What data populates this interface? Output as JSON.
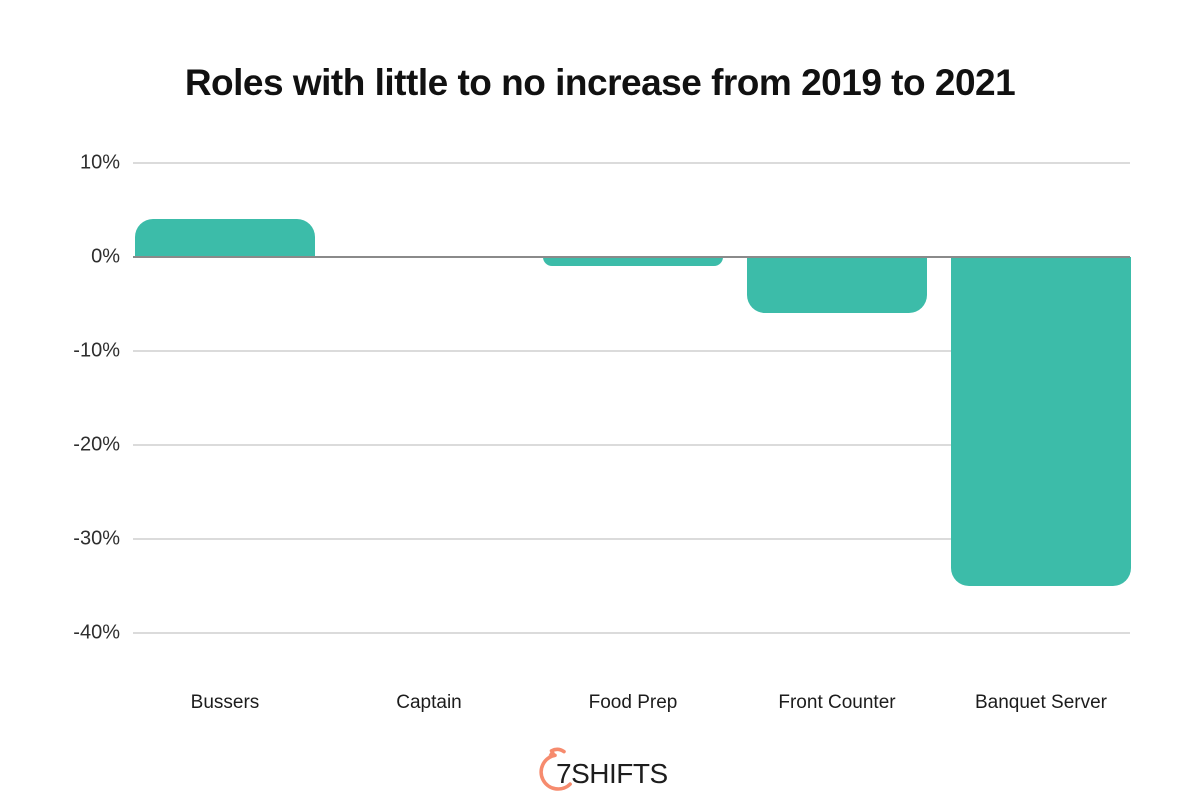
{
  "title": "Roles with little to no increase from 2019 to 2021",
  "chart_data": {
    "type": "bar",
    "categories": [
      "Bussers",
      "Captain",
      "Food Prep",
      "Front Counter",
      "Banquet Server"
    ],
    "values": [
      4,
      0,
      -1,
      -6,
      -35
    ],
    "unit": "%",
    "title": "Roles with little to no increase from 2019 to 2021",
    "xlabel": "",
    "ylabel": "",
    "ylim": [
      -40,
      10
    ],
    "yticks": [
      10,
      0,
      -10,
      -20,
      -30,
      -40
    ],
    "ytick_labels": [
      "10%",
      "0%",
      "-10%",
      "-20%",
      "-30%",
      "-40%"
    ],
    "grid": true,
    "legend": false,
    "bar_color": "#3cbca9",
    "gridline_color": "#dbdbdb",
    "zero_line_color": "#8a8a8a",
    "title_color": "#111111",
    "label_color": "#1c1c1c"
  },
  "footer": {
    "logo_seven": "7",
    "logo_rest": "SHIFTS",
    "logo_accent": "#f68b6e"
  }
}
